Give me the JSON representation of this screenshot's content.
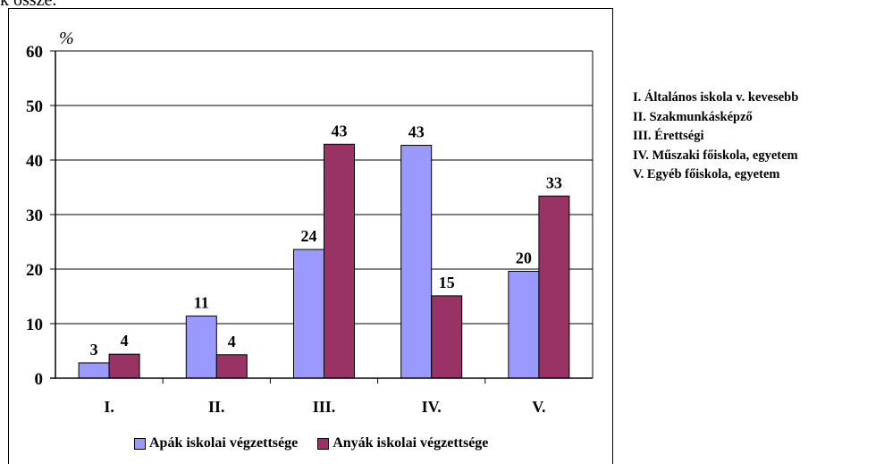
{
  "top_fragment": "k össze.",
  "chart_data": {
    "type": "bar",
    "categories": [
      "I.",
      "II.",
      "III.",
      "IV.",
      "V."
    ],
    "series": [
      {
        "name": "Apák iskolai végzettsége",
        "values": [
          2.8,
          11.4,
          23.6,
          42.7,
          19.6
        ],
        "labels": [
          "3",
          "11",
          "24",
          "43",
          "20"
        ],
        "color": "#9999ff"
      },
      {
        "name": "Anyák iskolai végzettsége",
        "values": [
          4.4,
          4.3,
          42.9,
          15.1,
          33.4
        ],
        "labels": [
          "4",
          "4",
          "43",
          "15",
          "33"
        ],
        "color": "#993366"
      }
    ],
    "ylabel": "%",
    "ylim": [
      0,
      60
    ],
    "yticks": [
      0,
      10,
      20,
      30,
      40,
      50,
      60
    ],
    "grid": true,
    "legend": "bottom"
  },
  "category_legend": [
    "I. Általános iskola v. kevesebb",
    "II. Szakmunkásképző",
    "III. Érettségi",
    "IV. Műszaki főiskola, egyetem",
    "V. Egyéb főiskola, egyetem"
  ]
}
